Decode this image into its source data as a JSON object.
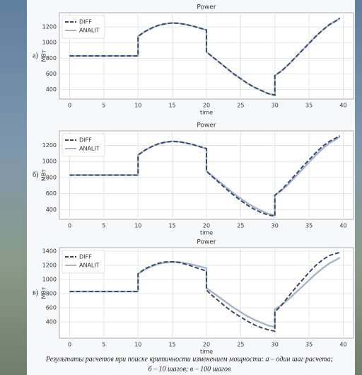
{
  "chart_data": [
    {
      "type": "line",
      "panel_label": "а)",
      "title": "Power",
      "x_label": "time",
      "y_label": "МВт",
      "x": [
        0,
        10,
        10,
        11,
        12,
        13,
        14,
        15,
        16,
        17,
        18,
        19,
        20,
        20,
        21,
        22,
        23,
        24,
        25,
        26,
        27,
        28,
        29,
        30,
        30,
        31,
        32,
        33,
        34,
        35,
        36,
        37,
        38,
        39,
        39.5
      ],
      "series": [
        {
          "name": "DIFF",
          "color": "#3b4a6b",
          "dash": true,
          "values": [
            830,
            830,
            1080,
            1140,
            1185,
            1220,
            1240,
            1250,
            1245,
            1230,
            1210,
            1185,
            1160,
            880,
            810,
            740,
            670,
            600,
            540,
            480,
            430,
            390,
            350,
            330,
            580,
            640,
            720,
            810,
            900,
            990,
            1080,
            1160,
            1230,
            1280,
            1310
          ]
        },
        {
          "name": "ANALIT",
          "color": "#a9b4c8",
          "dash": false,
          "values": [
            830,
            830,
            1080,
            1140,
            1185,
            1220,
            1240,
            1250,
            1245,
            1230,
            1210,
            1185,
            1160,
            880,
            810,
            740,
            670,
            600,
            540,
            480,
            430,
            390,
            350,
            330,
            580,
            640,
            720,
            810,
            900,
            990,
            1080,
            1160,
            1230,
            1280,
            1310
          ]
        }
      ],
      "xlim": [
        -1.5,
        41.5
      ],
      "xticks": [
        0,
        5,
        10,
        15,
        20,
        25,
        30,
        35,
        40
      ],
      "ylim": [
        280,
        1380
      ],
      "yticks": [
        400,
        600,
        800,
        1000,
        1200
      ],
      "grid": true,
      "legend": "upper-left"
    },
    {
      "type": "line",
      "panel_label": "б)",
      "title": "Power",
      "x_label": "time",
      "y_label": "МВт",
      "x": [
        0,
        10,
        10,
        11,
        12,
        13,
        14,
        15,
        16,
        17,
        18,
        19,
        20,
        20,
        21,
        22,
        23,
        24,
        25,
        26,
        27,
        28,
        29,
        30,
        30,
        31,
        32,
        33,
        34,
        35,
        36,
        37,
        38,
        39,
        39.5
      ],
      "series": [
        {
          "name": "DIFF",
          "color": "#3b4a6b",
          "dash": true,
          "values": [
            830,
            830,
            1080,
            1140,
            1185,
            1220,
            1240,
            1250,
            1245,
            1230,
            1210,
            1185,
            1160,
            880,
            800,
            725,
            650,
            580,
            515,
            455,
            405,
            365,
            335,
            320,
            580,
            650,
            740,
            835,
            930,
            1020,
            1110,
            1190,
            1250,
            1295,
            1320
          ]
        },
        {
          "name": "ANALIT",
          "color": "#a9b4c8",
          "dash": false,
          "values": [
            830,
            830,
            1080,
            1140,
            1185,
            1220,
            1240,
            1250,
            1245,
            1230,
            1210,
            1185,
            1160,
            880,
            810,
            740,
            670,
            600,
            540,
            480,
            430,
            390,
            350,
            330,
            580,
            640,
            720,
            810,
            900,
            990,
            1080,
            1160,
            1230,
            1280,
            1310
          ]
        }
      ],
      "xlim": [
        -1.5,
        41.5
      ],
      "xticks": [
        0,
        5,
        10,
        15,
        20,
        25,
        30,
        35,
        40
      ],
      "ylim": [
        280,
        1380
      ],
      "yticks": [
        400,
        600,
        800,
        1000,
        1200
      ],
      "grid": true,
      "legend": "upper-left"
    },
    {
      "type": "line",
      "panel_label": "в)",
      "title": "Power",
      "x_label": "time",
      "y_label": "МВт",
      "x": [
        0,
        10,
        10,
        11,
        12,
        13,
        14,
        15,
        16,
        17,
        18,
        19,
        20,
        20,
        21,
        22,
        23,
        24,
        25,
        26,
        27,
        28,
        29,
        30,
        30,
        31,
        32,
        33,
        34,
        35,
        36,
        37,
        38,
        39,
        39.5
      ],
      "series": [
        {
          "name": "DIFF",
          "color": "#3b4a6b",
          "dash": true,
          "values": [
            830,
            830,
            1080,
            1150,
            1195,
            1230,
            1248,
            1250,
            1240,
            1215,
            1185,
            1150,
            1120,
            850,
            760,
            680,
            600,
            530,
            470,
            410,
            360,
            320,
            290,
            270,
            540,
            640,
            760,
            880,
            990,
            1100,
            1200,
            1280,
            1340,
            1370,
            1380
          ]
        },
        {
          "name": "ANALIT",
          "color": "#a9b4c8",
          "dash": false,
          "values": [
            830,
            830,
            1080,
            1140,
            1185,
            1220,
            1240,
            1250,
            1245,
            1230,
            1210,
            1185,
            1160,
            880,
            810,
            740,
            670,
            600,
            540,
            480,
            430,
            390,
            350,
            330,
            580,
            640,
            720,
            810,
            900,
            990,
            1080,
            1160,
            1230,
            1280,
            1310
          ]
        }
      ],
      "xlim": [
        -1.5,
        41.5
      ],
      "xticks": [
        0,
        5,
        10,
        15,
        20,
        25,
        30,
        35,
        40
      ],
      "ylim": [
        170,
        1450
      ],
      "yticks": [
        400,
        600,
        800,
        1000,
        1200,
        1400
      ],
      "grid": true,
      "legend": "upper-left"
    }
  ],
  "caption": [
    "Результаты расчетов при поиске критичности изменением мощности: а – один шаг расчета;",
    "б – 10 шагов; в – 100 шагов"
  ]
}
